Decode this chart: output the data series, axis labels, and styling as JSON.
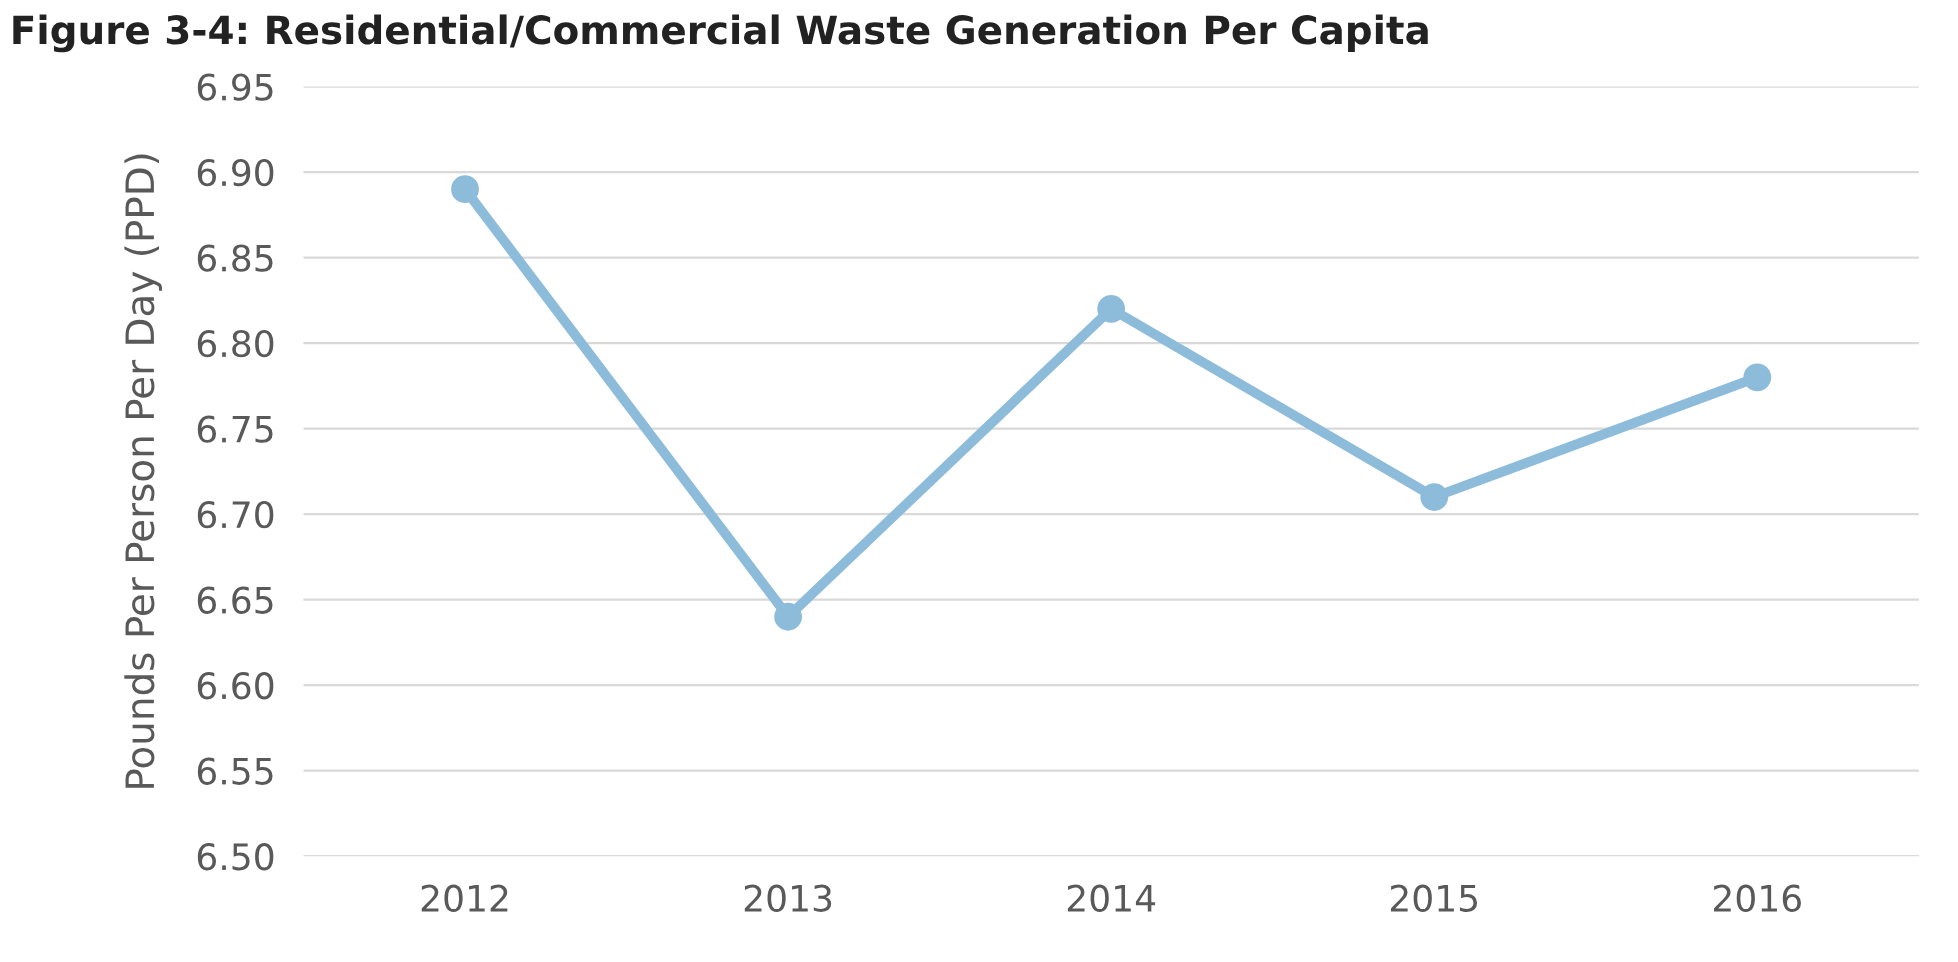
{
  "chart_data": {
    "type": "line",
    "title": "Figure 3-4: Residential/Commercial Waste Generation Per Capita",
    "ylabel": "Pounds Per Person Per Day (PPD)",
    "categories": [
      "2012",
      "2013",
      "2014",
      "2015",
      "2016"
    ],
    "series": [
      {
        "color": "#8dbcdb",
        "values": [
          6.89,
          6.64,
          6.82,
          6.71,
          6.78
        ]
      }
    ],
    "ylim": [
      6.5,
      6.95
    ],
    "yticks": [
      {
        "value": 6.5,
        "label": "6.50"
      },
      {
        "value": 6.55,
        "label": "6.55"
      },
      {
        "value": 6.6,
        "label": "6.60"
      },
      {
        "value": 6.65,
        "label": "6.65"
      },
      {
        "value": 6.7,
        "label": "6.70"
      },
      {
        "value": 6.75,
        "label": "6.75"
      },
      {
        "value": 6.8,
        "label": "6.80"
      },
      {
        "value": 6.85,
        "label": "6.85"
      },
      {
        "value": 6.9,
        "label": "6.90"
      },
      {
        "value": 6.95,
        "label": "6.95"
      }
    ],
    "grid": "y",
    "marker": "circle",
    "line_style": "solid"
  }
}
